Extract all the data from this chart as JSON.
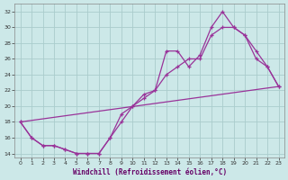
{
  "xlabel": "Windchill (Refroidissement éolien,°C)",
  "bg_color": "#cce8e8",
  "grid_color": "#aacccc",
  "line_color": "#993399",
  "xlim": [
    -0.5,
    23.5
  ],
  "ylim": [
    13.5,
    33.0
  ],
  "yticks": [
    14,
    16,
    18,
    20,
    22,
    24,
    26,
    28,
    30,
    32
  ],
  "xticks": [
    0,
    1,
    2,
    3,
    4,
    5,
    6,
    7,
    8,
    9,
    10,
    11,
    12,
    13,
    14,
    15,
    16,
    17,
    18,
    19,
    20,
    21,
    22,
    23
  ],
  "series1_x": [
    0,
    1,
    2,
    3,
    4,
    5,
    6,
    7,
    8,
    9,
    10,
    11,
    12,
    13,
    14,
    15,
    16,
    17,
    18,
    19,
    20,
    21,
    22,
    23
  ],
  "series1_y": [
    18,
    16,
    15,
    15,
    14.5,
    14,
    14,
    14,
    16,
    18,
    20,
    21,
    22,
    27,
    27,
    25,
    26.5,
    30,
    32,
    30,
    29,
    27,
    25,
    22.5
  ],
  "series2_x": [
    0,
    1,
    2,
    3,
    4,
    5,
    6,
    7,
    8,
    9,
    10,
    11,
    12,
    13,
    14,
    15,
    16,
    17,
    18,
    19,
    20,
    21,
    22,
    23
  ],
  "series2_y": [
    18,
    16,
    15,
    15,
    14.5,
    14,
    14,
    14,
    16,
    19,
    20,
    21.5,
    22,
    24,
    25,
    26,
    26,
    29,
    30,
    30,
    29,
    26,
    25,
    22.5
  ],
  "series3_x": [
    0,
    23
  ],
  "series3_y": [
    18,
    22.5
  ]
}
